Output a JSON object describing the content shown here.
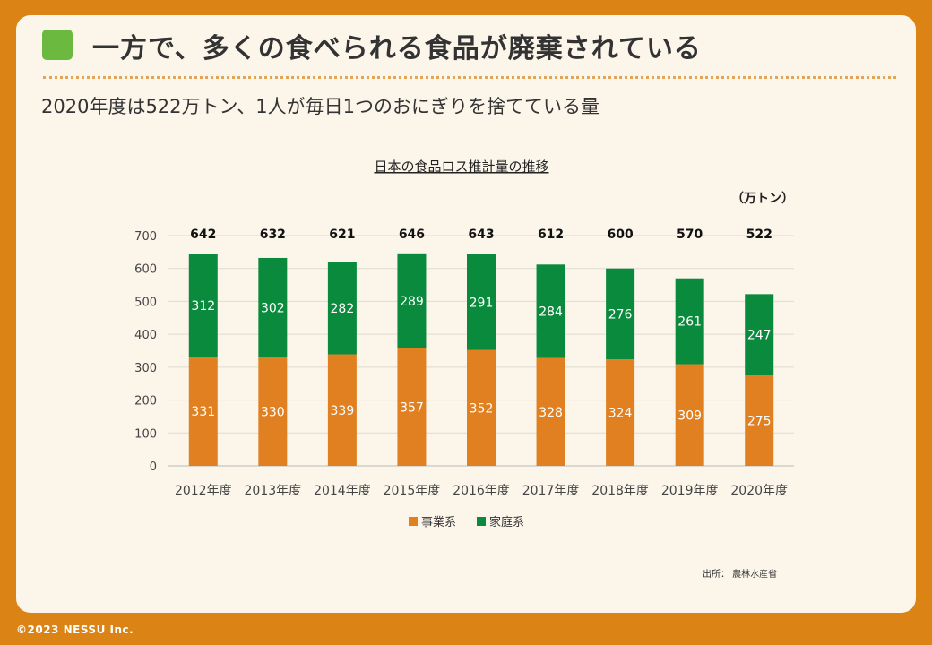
{
  "header": {
    "title": "一方で、多くの食べられる食品が廃棄されている",
    "subtitle": "2020年度は522万トン、1人が毎日1つのおにぎりを捨てている量"
  },
  "colors": {
    "background": "#dc8316",
    "card": "#fbf5ea",
    "accent": "#6cb940",
    "business": "#e08020",
    "household": "#0a8a3c"
  },
  "chart_data": {
    "type": "bar",
    "stacked": true,
    "title": "日本の食品ロス推計量の推移",
    "unit": "（万トン）",
    "xlabel": "",
    "ylabel": "",
    "ylim": [
      0,
      700
    ],
    "yticks": [
      0,
      100,
      200,
      300,
      400,
      500,
      600,
      700
    ],
    "grid": true,
    "legend_position": "bottom",
    "categories": [
      "2012年度",
      "2013年度",
      "2014年度",
      "2015年度",
      "2016年度",
      "2017年度",
      "2018年度",
      "2019年度",
      "2020年度"
    ],
    "series": [
      {
        "name": "事業系",
        "color": "#e08020",
        "values": [
          331,
          330,
          339,
          357,
          352,
          328,
          324,
          309,
          275
        ]
      },
      {
        "name": "家庭系",
        "color": "#0a8a3c",
        "values": [
          312,
          302,
          282,
          289,
          291,
          284,
          276,
          261,
          247
        ]
      }
    ],
    "totals": [
      642,
      632,
      621,
      646,
      643,
      612,
      600,
      570,
      522
    ]
  },
  "footer": {
    "source": "出所： 農林水産省",
    "copyright": "©2023 NESSU Inc."
  }
}
